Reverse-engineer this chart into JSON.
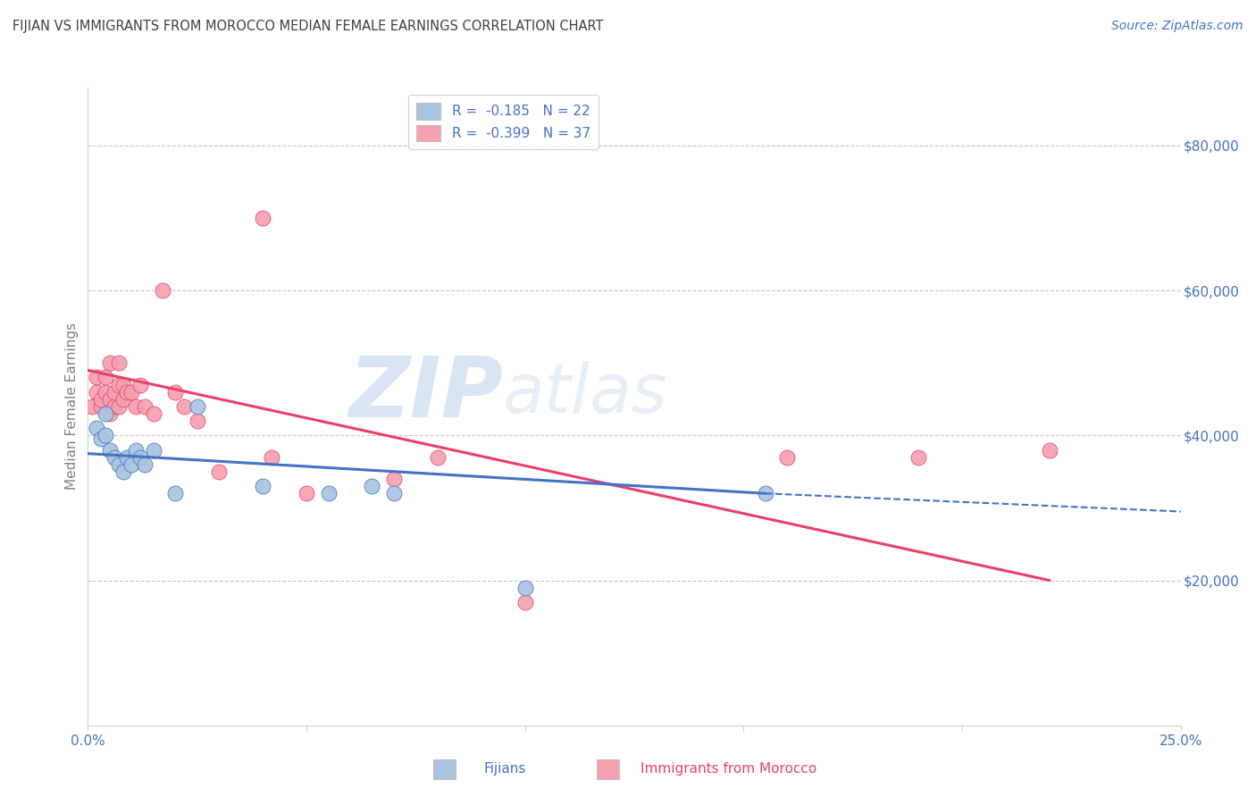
{
  "title": "FIJIAN VS IMMIGRANTS FROM MOROCCO MEDIAN FEMALE EARNINGS CORRELATION CHART",
  "source": "Source: ZipAtlas.com",
  "ylabel": "Median Female Earnings",
  "yticks": [
    0,
    20000,
    40000,
    60000,
    80000
  ],
  "ytick_labels": [
    "",
    "$20,000",
    "$40,000",
    "$60,000",
    "$80,000"
  ],
  "xlim": [
    0.0,
    0.25
  ],
  "ylim": [
    0,
    88000
  ],
  "fijian_color": "#a8c4e0",
  "morocco_color": "#f4a0b0",
  "fijian_line_color": "#4472c4",
  "morocco_line_color": "#e8406a",
  "legend_label_fijian": "R =  -0.185   N = 22",
  "legend_label_morocco": "R =  -0.399   N = 37",
  "watermark_zip": "ZIP",
  "watermark_atlas": "atlas",
  "title_color": "#404040",
  "source_color": "#4472c4",
  "axis_label_color": "#808080",
  "tick_color": "#4472c4",
  "grid_color": "#c8c8c8",
  "fijian_x": [
    0.002,
    0.003,
    0.004,
    0.004,
    0.005,
    0.006,
    0.007,
    0.008,
    0.009,
    0.01,
    0.011,
    0.012,
    0.013,
    0.015,
    0.02,
    0.025,
    0.04,
    0.055,
    0.065,
    0.07,
    0.1,
    0.155
  ],
  "fijian_y": [
    41000,
    39500,
    40000,
    43000,
    38000,
    37000,
    36000,
    35000,
    37000,
    36000,
    38000,
    37000,
    36000,
    38000,
    32000,
    44000,
    33000,
    32000,
    33000,
    32000,
    19000,
    32000
  ],
  "morocco_x": [
    0.001,
    0.002,
    0.002,
    0.003,
    0.003,
    0.004,
    0.004,
    0.005,
    0.005,
    0.005,
    0.006,
    0.006,
    0.007,
    0.007,
    0.007,
    0.008,
    0.008,
    0.009,
    0.01,
    0.011,
    0.012,
    0.013,
    0.015,
    0.017,
    0.02,
    0.022,
    0.025,
    0.03,
    0.04,
    0.042,
    0.05,
    0.07,
    0.08,
    0.1,
    0.16,
    0.19,
    0.22
  ],
  "morocco_y": [
    44000,
    46000,
    48000,
    44000,
    45000,
    46000,
    48000,
    43000,
    45000,
    50000,
    44000,
    46000,
    44000,
    47000,
    50000,
    45000,
    47000,
    46000,
    46000,
    44000,
    47000,
    44000,
    43000,
    60000,
    46000,
    44000,
    42000,
    35000,
    70000,
    37000,
    32000,
    34000,
    37000,
    17000,
    37000,
    37000,
    38000
  ]
}
